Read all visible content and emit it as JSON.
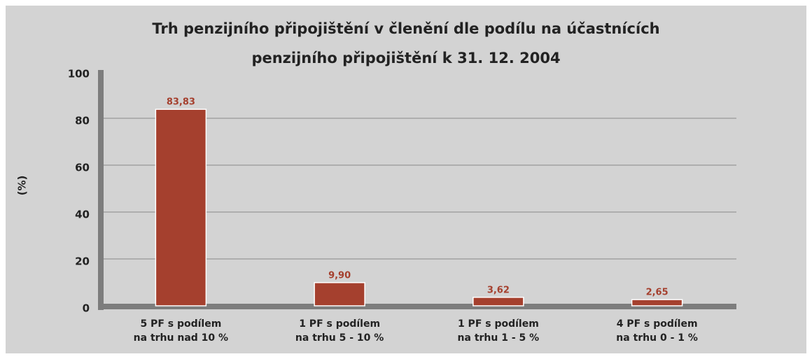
{
  "chart_data": {
    "type": "bar",
    "title": "Trh penzijního připojištění v členění dle podílu na účastnících\npenzijního připojištění k 31. 12. 2004",
    "y_label": "(%)",
    "categories": [
      "5 PF s podílem\nna trhu nad 10 %",
      "1 PF s podílem\nna trhu 5 - 10 %",
      "1 PF s podílem\nna trhu 1 - 5 %",
      "4 PF s podílem\nna trhu 0 - 1 %"
    ],
    "values": [
      83.83,
      9.9,
      3.62,
      2.65
    ],
    "value_labels": [
      "83,83",
      "9,90",
      "3,62",
      "2,65"
    ],
    "color": "#a5402e",
    "ylim": [
      0,
      100
    ],
    "yticks": [
      0,
      20,
      40,
      60,
      80,
      100
    ],
    "grid": true
  }
}
